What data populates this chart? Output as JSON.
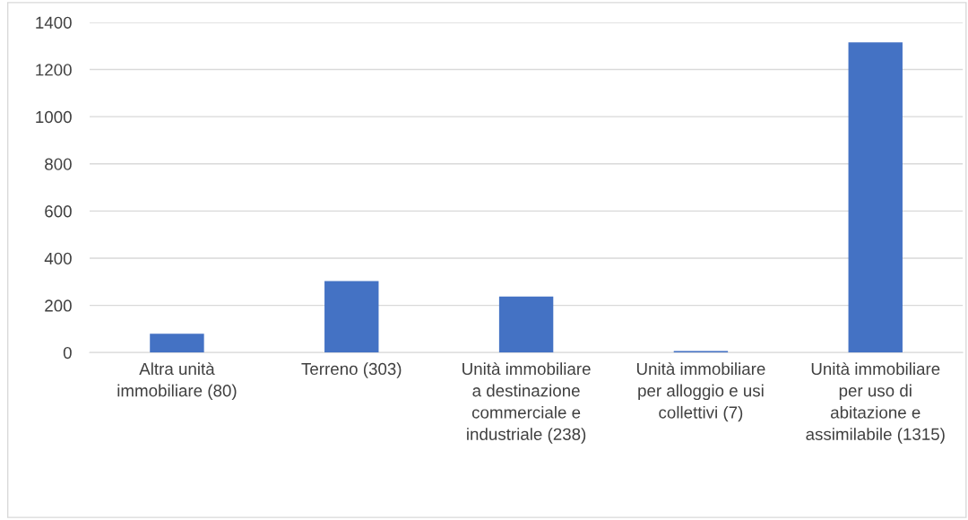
{
  "chart_data": {
    "type": "bar",
    "categories": [
      "Altra unità\nimmobiliare (80)",
      "Terreno (303)",
      "Unità immobiliare\na destinazione\ncommerciale e\nindustriale (238)",
      "Unità immobiliare\nper alloggio e usi\ncollettivi (7)",
      "Unità immobiliare\nper uso di\nabitazione e\nassimilabile (1315)"
    ],
    "values": [
      80,
      303,
      238,
      7,
      1315
    ],
    "color": "#4472c4",
    "ylim": [
      0,
      1400
    ],
    "yticks": [
      0,
      200,
      400,
      600,
      800,
      1000,
      1200,
      1400
    ],
    "grid": "y",
    "legend": false
  }
}
